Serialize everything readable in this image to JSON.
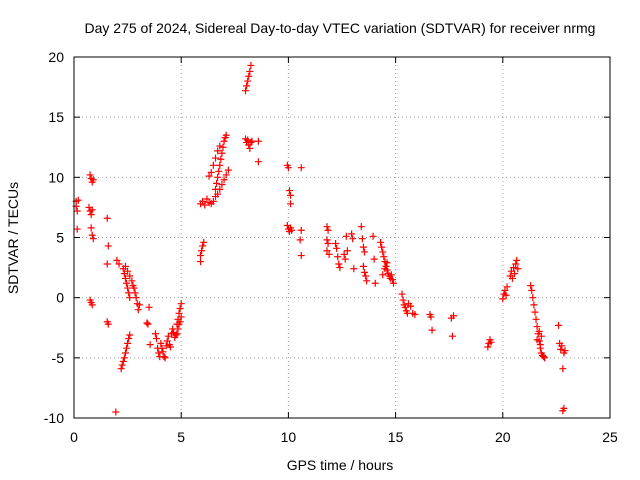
{
  "chart_data": {
    "type": "scatter",
    "title": "Day 275 of 2024, Sidereal Day-to-day VTEC variation (SDTVAR) for receiver nrmg",
    "xlabel": "GPS time / hours",
    "ylabel": "SDTVAR / TECUs",
    "xlim": [
      0,
      25
    ],
    "ylim": [
      -10,
      20
    ],
    "xticks": [
      0,
      5,
      10,
      15,
      20,
      25
    ],
    "yticks": [
      -10,
      -5,
      0,
      5,
      10,
      15,
      20
    ],
    "xtick_labels": [
      "0",
      "5",
      "10",
      "15",
      "20",
      "25"
    ],
    "ytick_labels": [
      "-10",
      "-5",
      "0",
      "5",
      "10",
      "15",
      "20"
    ],
    "grid": true,
    "marker": "+",
    "color": "#ff0000",
    "points": [
      [
        0.1,
        8.0
      ],
      [
        0.1,
        7.6
      ],
      [
        0.15,
        7.2
      ],
      [
        0.15,
        5.7
      ],
      [
        0.2,
        8.1
      ],
      [
        0.75,
        10.2
      ],
      [
        0.8,
        9.9
      ],
      [
        0.85,
        9.6
      ],
      [
        0.9,
        9.8
      ],
      [
        0.7,
        7.5
      ],
      [
        0.75,
        7.2
      ],
      [
        0.8,
        6.9
      ],
      [
        0.85,
        7.3
      ],
      [
        0.8,
        5.8
      ],
      [
        0.85,
        5.2
      ],
      [
        0.9,
        4.9
      ],
      [
        0.75,
        -0.2
      ],
      [
        0.8,
        -0.4
      ],
      [
        0.85,
        -0.6
      ],
      [
        1.55,
        6.6
      ],
      [
        1.6,
        4.3
      ],
      [
        1.55,
        2.8
      ],
      [
        1.55,
        -2.0
      ],
      [
        1.6,
        -2.2
      ],
      [
        1.95,
        -9.5
      ],
      [
        2.0,
        3.1
      ],
      [
        2.1,
        2.8
      ],
      [
        2.2,
        -5.9
      ],
      [
        2.25,
        -5.6
      ],
      [
        2.3,
        -5.3
      ],
      [
        2.35,
        -5.0
      ],
      [
        2.4,
        -4.6
      ],
      [
        2.45,
        -4.2
      ],
      [
        2.5,
        -3.8
      ],
      [
        2.55,
        -3.4
      ],
      [
        2.6,
        -3.1
      ],
      [
        2.3,
        2.4
      ],
      [
        2.35,
        2.0
      ],
      [
        2.4,
        1.6
      ],
      [
        2.45,
        1.2
      ],
      [
        2.5,
        0.8
      ],
      [
        2.55,
        0.4
      ],
      [
        2.6,
        0.0
      ],
      [
        2.4,
        2.6
      ],
      [
        2.5,
        2.2
      ],
      [
        2.6,
        1.8
      ],
      [
        2.7,
        1.4
      ],
      [
        2.75,
        1.0
      ],
      [
        2.8,
        0.8
      ],
      [
        2.85,
        0.4
      ],
      [
        2.9,
        0.0
      ],
      [
        2.95,
        -0.5
      ],
      [
        3.0,
        -1.0
      ],
      [
        3.05,
        -0.6
      ],
      [
        3.4,
        -2.1
      ],
      [
        3.45,
        -2.2
      ],
      [
        3.5,
        -0.8
      ],
      [
        3.55,
        -3.9
      ],
      [
        3.8,
        -3.0
      ],
      [
        3.85,
        -3.4
      ],
      [
        3.9,
        -4.2
      ],
      [
        3.95,
        -4.6
      ],
      [
        4.0,
        -4.9
      ],
      [
        4.05,
        -3.8
      ],
      [
        4.1,
        -4.2
      ],
      [
        4.15,
        -4.5
      ],
      [
        4.2,
        -4.9
      ],
      [
        4.25,
        -5.0
      ],
      [
        4.3,
        -4.0
      ],
      [
        4.35,
        -3.6
      ],
      [
        4.4,
        -3.2
      ],
      [
        4.45,
        -3.9
      ],
      [
        4.5,
        -4.1
      ],
      [
        4.55,
        -3.0
      ],
      [
        4.6,
        -2.6
      ],
      [
        4.65,
        -2.9
      ],
      [
        4.7,
        -3.3
      ],
      [
        4.75,
        -3.1
      ],
      [
        4.8,
        -2.2
      ],
      [
        4.85,
        -1.8
      ],
      [
        4.9,
        -1.3
      ],
      [
        4.95,
        -0.9
      ],
      [
        5.0,
        -0.5
      ],
      [
        4.8,
        -3.0
      ],
      [
        4.85,
        -2.6
      ],
      [
        4.9,
        -2.2
      ],
      [
        4.95,
        -2.0
      ],
      [
        5.0,
        -1.6
      ],
      [
        5.9,
        3.0
      ],
      [
        5.9,
        3.5
      ],
      [
        5.95,
        3.9
      ],
      [
        6.0,
        4.3
      ],
      [
        6.05,
        4.6
      ],
      [
        5.9,
        7.8
      ],
      [
        6.0,
        8.0
      ],
      [
        6.1,
        7.7
      ],
      [
        6.2,
        8.2
      ],
      [
        6.3,
        7.9
      ],
      [
        6.4,
        7.8
      ],
      [
        6.5,
        8.0
      ],
      [
        6.6,
        8.4
      ],
      [
        6.6,
        9.0
      ],
      [
        6.65,
        9.5
      ],
      [
        6.7,
        10.0
      ],
      [
        6.75,
        10.5
      ],
      [
        6.8,
        11.0
      ],
      [
        6.85,
        11.5
      ],
      [
        6.9,
        12.0
      ],
      [
        6.95,
        12.5
      ],
      [
        7.0,
        13.0
      ],
      [
        7.05,
        13.3
      ],
      [
        7.1,
        13.5
      ],
      [
        6.3,
        10.1
      ],
      [
        6.4,
        10.4
      ],
      [
        6.5,
        11.0
      ],
      [
        6.6,
        11.6
      ],
      [
        6.7,
        12.2
      ],
      [
        6.8,
        12.6
      ],
      [
        6.7,
        8.6
      ],
      [
        6.8,
        9.0
      ],
      [
        6.9,
        9.4
      ],
      [
        7.0,
        9.8
      ],
      [
        7.1,
        10.2
      ],
      [
        7.2,
        10.6
      ],
      [
        8.0,
        17.2
      ],
      [
        8.05,
        17.6
      ],
      [
        8.1,
        18.0
      ],
      [
        8.15,
        18.4
      ],
      [
        8.2,
        18.8
      ],
      [
        8.25,
        19.3
      ],
      [
        8.0,
        13.2
      ],
      [
        8.05,
        12.9
      ],
      [
        8.1,
        13.1
      ],
      [
        8.15,
        12.7
      ],
      [
        8.2,
        12.4
      ],
      [
        8.25,
        12.9
      ],
      [
        8.3,
        13.0
      ],
      [
        8.6,
        13.0
      ],
      [
        8.6,
        11.3
      ],
      [
        9.95,
        11.0
      ],
      [
        10.0,
        10.8
      ],
      [
        10.05,
        8.9
      ],
      [
        10.1,
        8.5
      ],
      [
        10.1,
        7.8
      ],
      [
        9.95,
        6.0
      ],
      [
        10.0,
        5.7
      ],
      [
        10.05,
        5.5
      ],
      [
        10.1,
        5.8
      ],
      [
        10.15,
        5.6
      ],
      [
        10.6,
        10.8
      ],
      [
        10.6,
        5.6
      ],
      [
        10.55,
        4.8
      ],
      [
        10.6,
        3.5
      ],
      [
        11.8,
        5.9
      ],
      [
        11.85,
        5.6
      ],
      [
        11.8,
        4.8
      ],
      [
        11.85,
        4.5
      ],
      [
        11.9,
        3.6
      ],
      [
        11.8,
        3.9
      ],
      [
        12.2,
        4.5
      ],
      [
        12.25,
        4.1
      ],
      [
        12.3,
        3.4
      ],
      [
        12.35,
        2.8
      ],
      [
        12.4,
        2.5
      ],
      [
        12.6,
        3.6
      ],
      [
        12.65,
        3.2
      ],
      [
        12.7,
        5.1
      ],
      [
        12.75,
        3.9
      ],
      [
        12.95,
        5.3
      ],
      [
        13.0,
        4.9
      ],
      [
        13.05,
        2.4
      ],
      [
        13.4,
        5.9
      ],
      [
        13.45,
        4.9
      ],
      [
        13.5,
        4.2
      ],
      [
        13.55,
        3.8
      ],
      [
        13.6,
        1.8
      ],
      [
        13.65,
        1.4
      ],
      [
        13.5,
        2.6
      ],
      [
        13.55,
        2.1
      ],
      [
        13.95,
        5.1
      ],
      [
        14.0,
        3.2
      ],
      [
        14.05,
        1.2
      ],
      [
        14.3,
        4.6
      ],
      [
        14.35,
        4.2
      ],
      [
        14.4,
        3.8
      ],
      [
        14.45,
        3.4
      ],
      [
        14.5,
        3.0
      ],
      [
        14.55,
        2.6
      ],
      [
        14.6,
        2.3
      ],
      [
        14.65,
        2.0
      ],
      [
        14.7,
        1.8
      ],
      [
        14.75,
        1.6
      ],
      [
        14.8,
        1.9
      ],
      [
        14.85,
        1.5
      ],
      [
        14.9,
        1.2
      ],
      [
        14.4,
        1.9
      ],
      [
        14.5,
        2.4
      ],
      [
        14.6,
        2.9
      ],
      [
        15.3,
        0.3
      ],
      [
        15.35,
        -0.2
      ],
      [
        15.4,
        -0.6
      ],
      [
        15.45,
        -0.8
      ],
      [
        15.5,
        -1.1
      ],
      [
        15.55,
        -1.3
      ],
      [
        15.6,
        -0.5
      ],
      [
        15.7,
        -0.7
      ],
      [
        15.8,
        -1.3
      ],
      [
        15.9,
        -1.4
      ],
      [
        16.6,
        -1.4
      ],
      [
        16.65,
        -1.6
      ],
      [
        16.7,
        -2.7
      ],
      [
        17.6,
        -1.7
      ],
      [
        17.7,
        -1.5
      ],
      [
        17.65,
        -3.2
      ],
      [
        19.3,
        -4.1
      ],
      [
        19.35,
        -3.8
      ],
      [
        19.4,
        -3.5
      ],
      [
        19.45,
        -3.7
      ],
      [
        20.0,
        -0.1
      ],
      [
        20.05,
        0.3
      ],
      [
        20.1,
        0.6
      ],
      [
        20.15,
        0.2
      ],
      [
        20.2,
        0.9
      ],
      [
        20.35,
        1.8
      ],
      [
        20.4,
        2.2
      ],
      [
        20.45,
        1.6
      ],
      [
        20.5,
        2.5
      ],
      [
        20.55,
        2.0
      ],
      [
        20.6,
        2.8
      ],
      [
        20.65,
        3.1
      ],
      [
        20.7,
        2.4
      ],
      [
        21.3,
        1.0
      ],
      [
        21.35,
        0.6
      ],
      [
        21.4,
        0.0
      ],
      [
        21.45,
        -0.6
      ],
      [
        21.5,
        -1.2
      ],
      [
        21.55,
        -1.8
      ],
      [
        21.6,
        -2.4
      ],
      [
        21.65,
        -3.0
      ],
      [
        21.7,
        -3.6
      ],
      [
        21.75,
        -4.2
      ],
      [
        21.8,
        -4.6
      ],
      [
        21.85,
        -4.8
      ],
      [
        21.9,
        -4.9
      ],
      [
        21.95,
        -5.0
      ],
      [
        21.6,
        -3.5
      ],
      [
        21.7,
        -2.8
      ],
      [
        21.75,
        -3.9
      ],
      [
        21.8,
        -3.2
      ],
      [
        22.6,
        -2.3
      ],
      [
        22.65,
        -3.8
      ],
      [
        22.7,
        -4.3
      ],
      [
        22.75,
        -4.0
      ],
      [
        22.8,
        -5.9
      ],
      [
        22.85,
        -4.6
      ],
      [
        22.9,
        -4.4
      ],
      [
        22.8,
        -9.4
      ],
      [
        22.85,
        -9.2
      ]
    ]
  }
}
